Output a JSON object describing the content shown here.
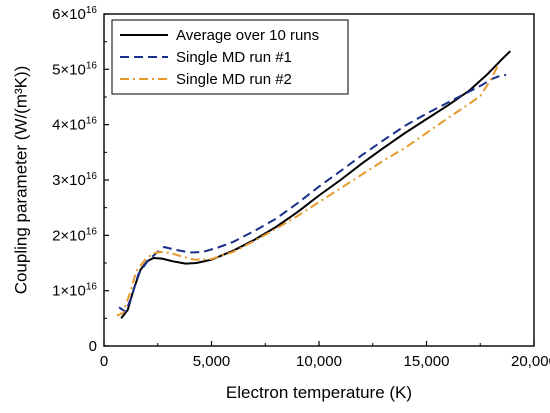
{
  "chart_data": {
    "type": "line",
    "title": "",
    "xlabel": "Electron temperature (K)",
    "ylabel": "Coupling parameter (W/(m³K))",
    "xlim": [
      0,
      20000
    ],
    "ylim": [
      0,
      6e+16
    ],
    "x_ticks": [
      0,
      5000,
      10000,
      15000,
      20000
    ],
    "x_tick_labels": [
      "0",
      "5,000",
      "10,000",
      "15,000",
      "20,000"
    ],
    "y_ticks": [
      0,
      1e+16,
      2e+16,
      3e+16,
      4e+16,
      5e+16,
      6e+16
    ],
    "y_tick_labels": [
      {
        "mantissa": "0",
        "exp": ""
      },
      {
        "mantissa": "1×10",
        "exp": "16"
      },
      {
        "mantissa": "2×10",
        "exp": "16"
      },
      {
        "mantissa": "3×10",
        "exp": "16"
      },
      {
        "mantissa": "4×10",
        "exp": "16"
      },
      {
        "mantissa": "5×10",
        "exp": "16"
      },
      {
        "mantissa": "6×10",
        "exp": "16"
      }
    ],
    "grid": false,
    "legend_position": "top-left",
    "series": [
      {
        "name": "Average over 10 runs",
        "color": "#000000",
        "style": "solid",
        "points": [
          [
            800,
            5000000000000000.0
          ],
          [
            1100,
            6500000000000000.0
          ],
          [
            1400,
            1.05e+16
          ],
          [
            1700,
            1.38e+16
          ],
          [
            2000,
            1.53e+16
          ],
          [
            2300,
            1.59e+16
          ],
          [
            2700,
            1.58e+16
          ],
          [
            3200,
            1.53e+16
          ],
          [
            3800,
            1.49e+16
          ],
          [
            4300,
            1.5e+16
          ],
          [
            5000,
            1.56e+16
          ],
          [
            6000,
            1.72e+16
          ],
          [
            7000,
            1.92e+16
          ],
          [
            8000,
            2.15e+16
          ],
          [
            9000,
            2.42e+16
          ],
          [
            10000,
            2.72e+16
          ],
          [
            11000,
            3e+16
          ],
          [
            12000,
            3.3e+16
          ],
          [
            13000,
            3.58e+16
          ],
          [
            14000,
            3.85e+16
          ],
          [
            15000,
            4.1e+16
          ],
          [
            16000,
            4.35e+16
          ],
          [
            17000,
            4.62e+16
          ],
          [
            17800,
            4.9e+16
          ],
          [
            18500,
            5.18e+16
          ],
          [
            18900,
            5.33e+16
          ]
        ]
      },
      {
        "name": "Single MD run #1",
        "color": "#1a2f8a",
        "style": "dashed",
        "points": [
          [
            700,
            7000000000000000.0
          ],
          [
            1000,
            6200000000000000.0
          ],
          [
            1300,
            9000000000000000.0
          ],
          [
            1600,
            1.3e+16
          ],
          [
            2000,
            1.52e+16
          ],
          [
            2400,
            1.67e+16
          ],
          [
            2800,
            1.79e+16
          ],
          [
            3300,
            1.74e+16
          ],
          [
            4000,
            1.69e+16
          ],
          [
            4600,
            1.7e+16
          ],
          [
            5300,
            1.78e+16
          ],
          [
            6000,
            1.88e+16
          ],
          [
            7000,
            2.08e+16
          ],
          [
            8000,
            2.3e+16
          ],
          [
            9000,
            2.58e+16
          ],
          [
            10000,
            2.88e+16
          ],
          [
            11000,
            3.16e+16
          ],
          [
            12000,
            3.45e+16
          ],
          [
            13000,
            3.72e+16
          ],
          [
            14000,
            3.98e+16
          ],
          [
            15000,
            4.2e+16
          ],
          [
            16000,
            4.4e+16
          ],
          [
            17000,
            4.6e+16
          ],
          [
            17600,
            4.72e+16
          ],
          [
            18000,
            4.82e+16
          ],
          [
            18400,
            4.88e+16
          ],
          [
            18700,
            4.9e+16
          ]
        ]
      },
      {
        "name": "Single MD run #2",
        "color": "#e69a2e",
        "style": "dashdot",
        "points": [
          [
            600,
            5500000000000000.0
          ],
          [
            900,
            6000000000000000.0
          ],
          [
            1200,
            9500000000000000.0
          ],
          [
            1500,
            1.35e+16
          ],
          [
            1900,
            1.55e+16
          ],
          [
            2300,
            1.68e+16
          ],
          [
            2700,
            1.7e+16
          ],
          [
            3100,
            1.68e+16
          ],
          [
            3600,
            1.62e+16
          ],
          [
            4200,
            1.56e+16
          ],
          [
            5000,
            1.57e+16
          ],
          [
            6000,
            1.7e+16
          ],
          [
            7000,
            1.9e+16
          ],
          [
            8000,
            2.12e+16
          ],
          [
            9000,
            2.35e+16
          ],
          [
            10000,
            2.6e+16
          ],
          [
            11000,
            2.85e+16
          ],
          [
            12000,
            3.1e+16
          ],
          [
            13000,
            3.35e+16
          ],
          [
            14000,
            3.58e+16
          ],
          [
            15000,
            3.85e+16
          ],
          [
            16000,
            4.12e+16
          ],
          [
            17000,
            4.38e+16
          ],
          [
            17500,
            4.52e+16
          ],
          [
            18000,
            4.82e+16
          ],
          [
            18300,
            5.05e+16
          ]
        ]
      }
    ]
  }
}
